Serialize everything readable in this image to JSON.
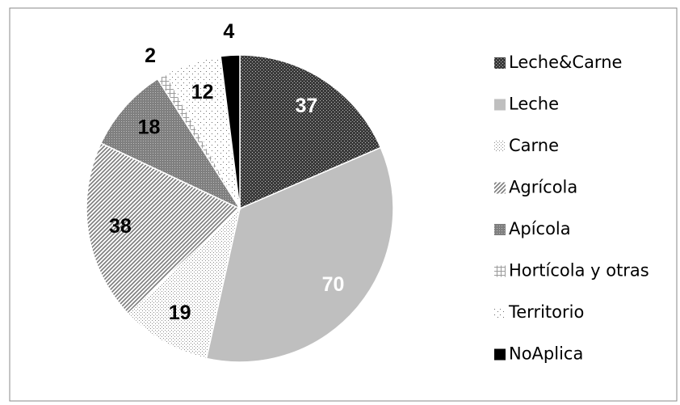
{
  "chart_data": {
    "type": "pie",
    "categories": [
      "Leche&Carne",
      "Leche",
      "Carne",
      "Agrícola",
      "Apícola",
      "Hortícola y otras",
      "Territorio",
      "NoAplica"
    ],
    "values": [
      37,
      70,
      19,
      38,
      18,
      2,
      12,
      4
    ],
    "colors": [
      "#3a3a3a",
      "#bfbfbf",
      "#8c8c8c",
      "#7a7a7a",
      "#7f7f7f",
      "#9a9a9a",
      "#6a6a6a",
      "#000000"
    ],
    "patterns": [
      "crosshatch",
      "solid",
      "fine-dots",
      "diagonal",
      "dense-grid",
      "grid",
      "sparse-dots",
      "solid"
    ],
    "label_colors": [
      "#ffffff",
      "#ffffff",
      "#000000",
      "#000000",
      "#000000",
      "#000000",
      "#000000",
      "#000000"
    ],
    "legend": "right"
  }
}
